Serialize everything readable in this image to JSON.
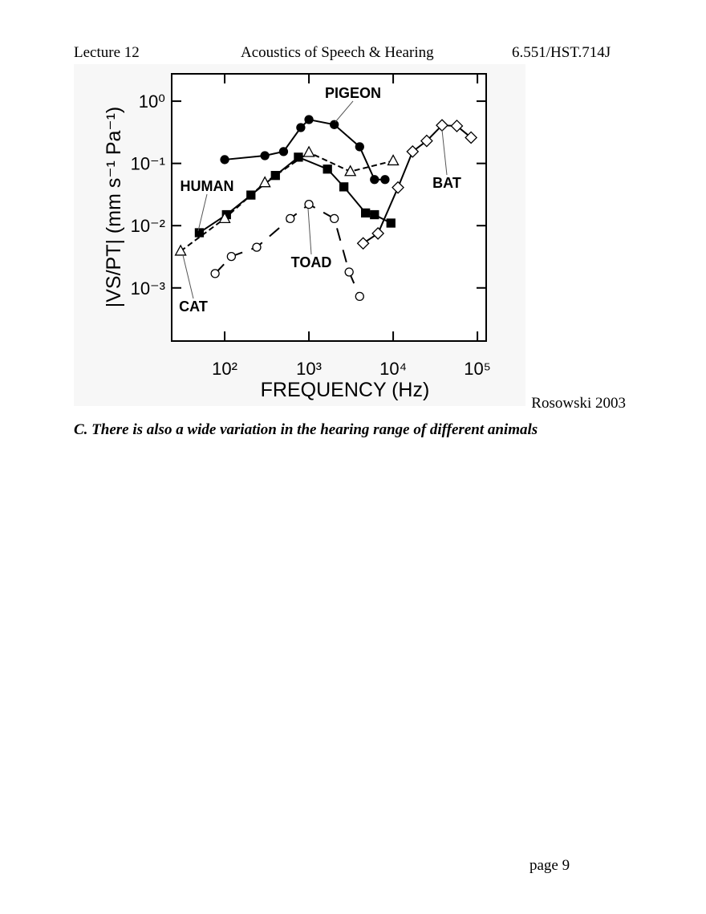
{
  "header": {
    "left": "Lecture 12",
    "center": "Acoustics of Speech & Hearing",
    "right": "6.551/HST.714J"
  },
  "chart_data": {
    "type": "line",
    "x_label": "FREQUENCY (Hz)",
    "y_label": "|VS/PT| (mm s⁻¹ Pa⁻¹)",
    "xscale": "log",
    "yscale": "log",
    "grid": false,
    "xlim": [
      23.5,
      127000
    ],
    "ylim": [
      0.00014,
      2.75
    ],
    "xticks": [
      {
        "value": 100,
        "label": "10²"
      },
      {
        "value": 1000,
        "label": "10³"
      },
      {
        "value": 10000,
        "label": "10⁴"
      },
      {
        "value": 100000,
        "label": "10⁵"
      }
    ],
    "yticks": [
      {
        "value": 1,
        "label": "10⁰"
      },
      {
        "value": 0.1,
        "label": "10⁻¹"
      },
      {
        "value": 0.01,
        "label": "10⁻²"
      },
      {
        "value": 0.001,
        "label": "10⁻³"
      }
    ],
    "series": [
      {
        "name": "PIGEON",
        "color": "#000000",
        "marker": "circle",
        "marker_fill": true,
        "line_style": "solid",
        "x": [
          100,
          300,
          500,
          800,
          1000,
          2000,
          4000,
          6000,
          8000
        ],
        "values": [
          0.115,
          0.133,
          0.155,
          0.376,
          0.506,
          0.42,
          0.185,
          0.055,
          0.055
        ]
      },
      {
        "name": "HUMAN",
        "color": "#000000",
        "marker": "square",
        "marker_fill": true,
        "line_style": "solid",
        "x": [
          50,
          105,
          205,
          400,
          750,
          1660,
          2600,
          4700,
          6000,
          9400
        ],
        "values": [
          0.0077,
          0.015,
          0.031,
          0.064,
          0.126,
          0.081,
          0.042,
          0.016,
          0.015,
          0.011
        ]
      },
      {
        "name": "CAT",
        "color": "#000000",
        "marker": "triangle",
        "marker_fill": false,
        "line_style": "dashed",
        "x": [
          30,
          100,
          300,
          1000,
          3100,
          10000
        ],
        "values": [
          0.0039,
          0.013,
          0.049,
          0.15,
          0.074,
          0.11
        ]
      },
      {
        "name": "TOAD",
        "color": "#000000",
        "marker": "circle",
        "marker_fill": false,
        "line_style": "longdash",
        "x": [
          77,
          120,
          240,
          600,
          1000,
          2000,
          3000,
          4000
        ],
        "values": [
          0.0017,
          0.0032,
          0.0045,
          0.013,
          0.022,
          0.013,
          0.0018,
          0.00073
        ]
      },
      {
        "name": "BAT",
        "color": "#000000",
        "marker": "diamond",
        "marker_fill": false,
        "line_style": "solid",
        "x": [
          4400,
          6600,
          11400,
          17000,
          25000,
          38000,
          57000,
          84000
        ],
        "values": [
          0.0052,
          0.0075,
          0.041,
          0.155,
          0.23,
          0.41,
          0.4,
          0.26
        ]
      }
    ]
  },
  "credit": "Rosowski 2003",
  "caption": "C.  There is also a wide variation in the hearing range of different animals",
  "footer": "page 9"
}
